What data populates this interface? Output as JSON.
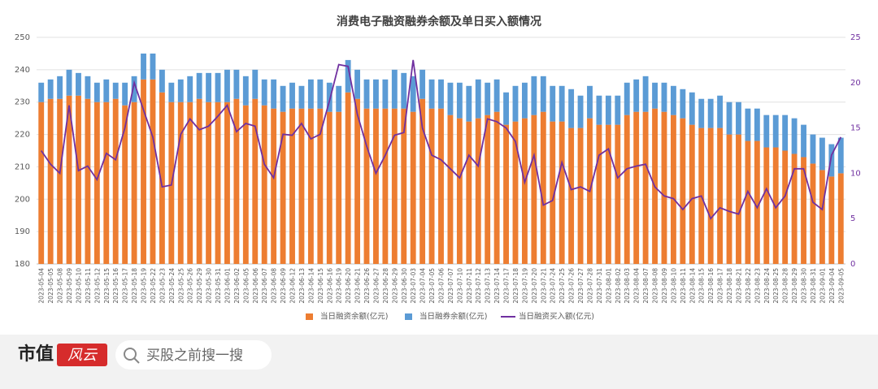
{
  "chart_data": {
    "type": "bar-line",
    "title": "消费电子融资融券余额及单日买入额情况",
    "categories": [
      "2023-05-04",
      "2023-05-05",
      "2023-05-08",
      "2023-05-09",
      "2023-05-10",
      "2023-05-11",
      "2023-05-12",
      "2023-05-15",
      "2023-05-16",
      "2023-05-17",
      "2023-05-18",
      "2023-05-19",
      "2023-05-22",
      "2023-05-23",
      "2023-05-24",
      "2023-05-25",
      "2023-05-26",
      "2023-05-29",
      "2023-05-30",
      "2023-05-31",
      "2023-06-01",
      "2023-06-02",
      "2023-06-05",
      "2023-06-06",
      "2023-06-07",
      "2023-06-08",
      "2023-06-09",
      "2023-06-12",
      "2023-06-13",
      "2023-06-14",
      "2023-06-15",
      "2023-06-16",
      "2023-06-19",
      "2023-06-20",
      "2023-06-21",
      "2023-06-26",
      "2023-06-27",
      "2023-06-28",
      "2023-06-29",
      "2023-06-30",
      "2023-07-03",
      "2023-07-04",
      "2023-07-05",
      "2023-07-06",
      "2023-07-07",
      "2023-07-10",
      "2023-07-11",
      "2023-07-12",
      "2023-07-13",
      "2023-07-14",
      "2023-07-17",
      "2023-07-18",
      "2023-07-19",
      "2023-07-20",
      "2023-07-21",
      "2023-07-24",
      "2023-07-25",
      "2023-07-26",
      "2023-07-27",
      "2023-07-28",
      "2023-07-31",
      "2023-08-01",
      "2023-08-02",
      "2023-08-03",
      "2023-08-04",
      "2023-08-07",
      "2023-08-08",
      "2023-08-09",
      "2023-08-10",
      "2023-08-11",
      "2023-08-14",
      "2023-08-15",
      "2023-08-16",
      "2023-08-17",
      "2023-08-18",
      "2023-08-21",
      "2023-08-22",
      "2023-08-23",
      "2023-08-24",
      "2023-08-25",
      "2023-08-28",
      "2023-08-29",
      "2023-08-30",
      "2023-08-31",
      "2023-09-01",
      "2023-09-04",
      "2023-09-05"
    ],
    "series": [
      {
        "name": "当日融资余额(亿元)",
        "color": "#ed7d31",
        "values": [
          230,
          231,
          231,
          232,
          232,
          231,
          230,
          230,
          231,
          229,
          230,
          237,
          237,
          233,
          230,
          230,
          230,
          231,
          230,
          230,
          230,
          231,
          229,
          231,
          229,
          228,
          227,
          228,
          228,
          228,
          228,
          227,
          227,
          233,
          231,
          228,
          228,
          228,
          228,
          228,
          227,
          231,
          228,
          228,
          226,
          225,
          224,
          225,
          226,
          227,
          223,
          224,
          225,
          226,
          227,
          224,
          224,
          222,
          222,
          225,
          223,
          223,
          223,
          226,
          227,
          227,
          228,
          227,
          226,
          225,
          223,
          222,
          222,
          222,
          220,
          220,
          218,
          218,
          216,
          216,
          215,
          214,
          213,
          211,
          209,
          207,
          208
        ]
      },
      {
        "name": "当日融券余额(亿元)",
        "color": "#5b9bd5",
        "values": [
          6,
          6,
          7,
          8,
          7,
          7,
          6,
          7,
          5,
          7,
          8,
          8,
          8,
          7,
          6,
          7,
          8,
          8,
          9,
          9,
          10,
          9,
          9,
          9,
          8,
          9,
          8,
          8,
          7,
          9,
          9,
          9,
          8,
          10,
          9,
          9,
          9,
          9,
          12,
          11,
          11,
          9,
          9,
          9,
          10,
          11,
          11,
          12,
          10,
          10,
          10,
          11,
          11,
          12,
          11,
          11,
          11,
          12,
          10,
          10,
          9,
          9,
          9,
          10,
          10,
          11,
          8,
          9,
          9,
          9,
          10,
          9,
          9,
          10,
          10,
          10,
          10,
          10,
          10,
          10,
          11,
          11,
          10,
          9,
          10,
          10,
          11
        ]
      },
      {
        "name": "当日融资买入额(亿元)",
        "color": "#7030a0",
        "axis": "y2",
        "values": [
          12.5,
          11,
          10,
          17.5,
          10.3,
          10.8,
          9.3,
          12.2,
          11.5,
          15,
          20,
          17,
          14,
          8.5,
          8.7,
          14.3,
          16,
          14.8,
          15.2,
          16.3,
          17.5,
          14.6,
          15.5,
          15.2,
          11,
          9.5,
          14.3,
          14.2,
          15.5,
          13.8,
          14.3,
          18,
          22,
          21.8,
          16.5,
          13,
          10,
          12,
          14.2,
          14.5,
          22.5,
          15,
          12,
          11.5,
          10.5,
          9.5,
          12,
          10.8,
          16,
          15.7,
          15,
          13.5,
          9,
          12,
          6.5,
          7,
          11.2,
          8.2,
          8.5,
          8,
          12,
          12.7,
          9.5,
          10.5,
          10.8,
          11,
          8.5,
          7.5,
          7.2,
          6,
          7.2,
          7.5,
          5,
          6.2,
          5.8,
          5.5,
          8,
          6.2,
          8.3,
          6.2,
          7.5,
          10.5,
          10.5,
          6.8,
          6,
          12,
          14
        ]
      }
    ],
    "ylim": [
      180,
      250
    ],
    "yticks": [
      180,
      190,
      200,
      210,
      220,
      230,
      240,
      250
    ],
    "y2lim": [
      0,
      25
    ],
    "y2ticks": [
      0,
      5,
      10,
      15,
      20,
      25
    ],
    "grid": true,
    "legend": "bottom"
  },
  "footer": {
    "brand": "市值",
    "logo": "风云",
    "search": "买股之前搜一搜"
  }
}
